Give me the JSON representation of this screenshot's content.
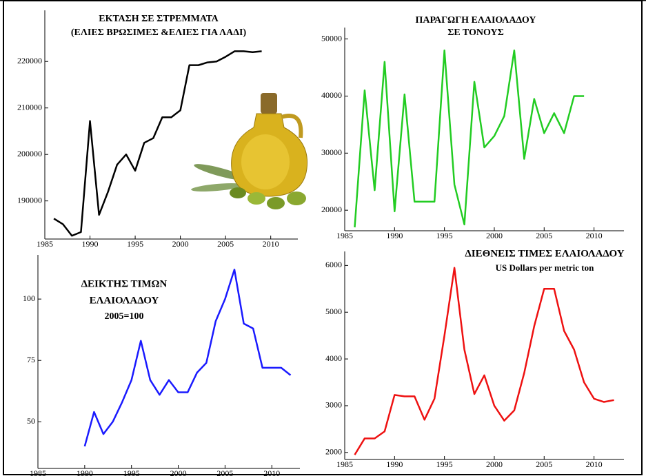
{
  "chart_data": [
    {
      "type": "line",
      "title": [
        "ΕΚΤΑΣΗ ΣΕ ΣΤΡΕΜΜΑΤΑ",
        "(ΕΛΙΕΣ ΒΡΩΣΙΜΕΣ &ΕΛΙΕΣ ΓΙΑ ΛΑΔΙ)"
      ],
      "x": [
        1986,
        1987,
        1988,
        1989,
        1990,
        1991,
        1992,
        1993,
        1994,
        1995,
        1996,
        1997,
        1998,
        1999,
        2000,
        2001,
        2002,
        2003,
        2004,
        2005,
        2006,
        2007,
        2008,
        2009
      ],
      "series": [
        {
          "color": "#000000",
          "values": [
            186200,
            185000,
            182500,
            183300,
            207200,
            187000,
            192000,
            197800,
            200000,
            196500,
            202500,
            203500,
            208000,
            208000,
            209500,
            219200,
            219200,
            219800,
            220000,
            221000,
            222200,
            222200,
            222000,
            222200
          ]
        }
      ],
      "xlim": [
        1985,
        2013
      ],
      "xticks": [
        1985,
        1990,
        1995,
        2000,
        2005,
        2010
      ],
      "ylim": [
        181800,
        231000
      ],
      "yticks": [
        190000,
        200000,
        210000,
        220000
      ]
    },
    {
      "type": "line",
      "title": [
        "ΠΑΡΑΓΩΓΗ ΕΛΑΙΟΛΑΔΟΥ",
        "ΣΕ ΤΟΝΟΥΣ"
      ],
      "x": [
        1986,
        1987,
        1988,
        1989,
        1990,
        1991,
        1992,
        1993,
        1994,
        1995,
        1996,
        1997,
        1998,
        1999,
        2000,
        2001,
        2002,
        2003,
        2004,
        2005,
        2006,
        2007,
        2008,
        2009
      ],
      "series": [
        {
          "color": "#22cc22",
          "values": [
            17000,
            41000,
            23500,
            46000,
            19800,
            40300,
            21500,
            21500,
            21500,
            48000,
            24500,
            17500,
            42500,
            31000,
            33000,
            36500,
            48000,
            29000,
            39500,
            33500,
            37000,
            33500,
            40000,
            40000
          ]
        }
      ],
      "xlim": [
        1985,
        2013
      ],
      "xticks": [
        1985,
        1990,
        1995,
        2000,
        2005,
        2010
      ],
      "ylim": [
        16400,
        52000
      ],
      "yticks": [
        20000,
        30000,
        40000,
        50000
      ]
    },
    {
      "type": "line",
      "title": [
        "ΔΕΙΚΤΗΣ ΤΙΜΩΝ",
        "ΕΛΑΙΟΛΑΔΟΥ",
        "2005=100"
      ],
      "x": [
        1990,
        1991,
        1992,
        1993,
        1994,
        1995,
        1996,
        1997,
        1998,
        1999,
        2000,
        2001,
        2002,
        2003,
        2004,
        2005,
        2006,
        2007,
        2008,
        2009,
        2010,
        2011,
        2012
      ],
      "series": [
        {
          "color": "#1a1aff",
          "values": [
            40,
            54,
            45,
            50,
            58,
            67,
            83,
            67,
            61,
            67,
            62,
            62,
            70,
            74,
            91,
            100,
            112,
            90,
            88,
            72,
            72,
            72,
            69
          ]
        }
      ],
      "xlim": [
        1985,
        2013
      ],
      "xticks": [
        1985,
        1990,
        1995,
        2000,
        2005,
        2010
      ],
      "ylim": [
        31,
        118
      ],
      "yticks": [
        50,
        75,
        100
      ]
    },
    {
      "type": "line",
      "title": [
        "ΔΙΕΘΝΕΙΣ ΤΙΜΕΣ ΕΛΑΙΟΛΑΔΟΥ",
        "US Dollars per metric ton"
      ],
      "x": [
        1986,
        1987,
        1988,
        1989,
        1990,
        1991,
        1992,
        1993,
        1994,
        1995,
        1996,
        1997,
        1998,
        1999,
        2000,
        2001,
        2002,
        2003,
        2004,
        2005,
        2006,
        2007,
        2008,
        2009,
        2010,
        2011,
        2012
      ],
      "series": [
        {
          "color": "#ee1111",
          "values": [
            1950,
            2300,
            2300,
            2450,
            3230,
            3200,
            3200,
            2700,
            3150,
            4500,
            5950,
            4200,
            3250,
            3650,
            3000,
            2680,
            2900,
            3700,
            4700,
            5500,
            5500,
            4600,
            4200,
            3500,
            3150,
            3080,
            3120
          ]
        }
      ],
      "xlim": [
        1985,
        2013
      ],
      "xticks": [
        1985,
        1990,
        1995,
        2000,
        2005,
        2010
      ],
      "ylim": [
        1850,
        6300
      ],
      "yticks": [
        2000,
        3000,
        4000,
        5000,
        6000
      ]
    }
  ]
}
